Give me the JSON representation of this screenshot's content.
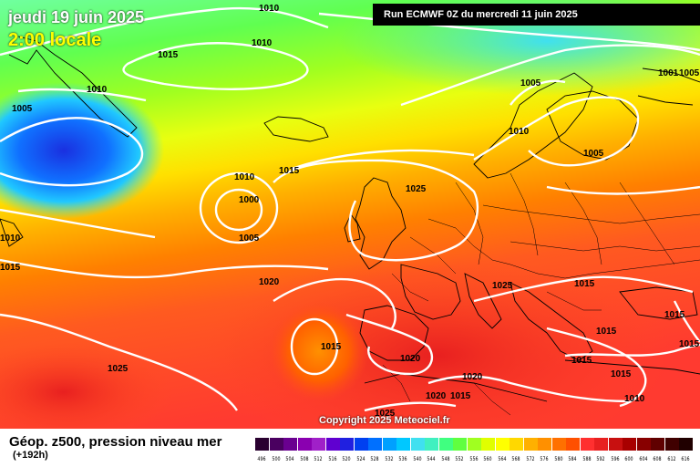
{
  "date": "jeudi 19 juin 2025",
  "local_time": "2:00 locale",
  "run_info": "Run ECMWF 0Z du mercredi 11 juin 2025",
  "copyright": "Copyright 2025 Meteociel.fr",
  "caption": "Géop. z500, pression niveau mer",
  "forecast_hour": "(+192h)",
  "scale_values": [
    "496",
    "500",
    "504",
    "508",
    "512",
    "516",
    "520",
    "524",
    "528",
    "532",
    "536",
    "540",
    "544",
    "548",
    "552",
    "556",
    "560",
    "564",
    "568",
    "572",
    "576",
    "580",
    "584",
    "588",
    "592",
    "596",
    "600",
    "604",
    "608",
    "612",
    "616"
  ],
  "scale_colors": [
    "#2a0030",
    "#4a0060",
    "#6a0090",
    "#8a00b0",
    "#a020c8",
    "#6000d0",
    "#2020e0",
    "#0040f0",
    "#0070ff",
    "#00a0ff",
    "#00c8ff",
    "#40e0f0",
    "#40f0c0",
    "#40ff80",
    "#60ff40",
    "#a0ff20",
    "#e0ff00",
    "#ffff00",
    "#ffd800",
    "#ffb000",
    "#ff9000",
    "#ff7000",
    "#ff5000",
    "#ff3030",
    "#e82020",
    "#c81010",
    "#a80000",
    "#880000",
    "#600000",
    "#400000",
    "#200000"
  ],
  "isobars": [
    {
      "label": "1010",
      "area": "north-atlantic-top"
    },
    {
      "label": "1010",
      "area": "north-atlantic"
    },
    {
      "label": "1015",
      "area": "north-atlantic"
    },
    {
      "label": "1010",
      "area": "greenland"
    },
    {
      "label": "1005",
      "area": "greenland"
    },
    {
      "label": "1010",
      "area": "west-edge"
    },
    {
      "label": "1015",
      "area": "west-edge"
    },
    {
      "label": "1010",
      "area": "low-atlantic"
    },
    {
      "label": "1015",
      "area": "low-atlantic"
    },
    {
      "label": "1000",
      "area": "low-atlantic-center"
    },
    {
      "label": "1005",
      "area": "low-atlantic"
    },
    {
      "label": "1020",
      "area": "mid-atlantic"
    },
    {
      "label": "1025",
      "area": "south-atlantic"
    },
    {
      "label": "1015",
      "area": "iberia-low"
    },
    {
      "label": "1020",
      "area": "iberia"
    },
    {
      "label": "1025",
      "area": "north-sea"
    },
    {
      "label": "1025",
      "area": "central-europe"
    },
    {
      "label": "1005",
      "area": "norway"
    },
    {
      "label": "1010",
      "area": "norway"
    },
    {
      "label": "1005",
      "area": "finland"
    },
    {
      "label": "1005",
      "area": "russia"
    },
    {
      "label": "1001",
      "area": "russia"
    },
    {
      "label": "1015",
      "area": "balkans"
    },
    {
      "label": "1015",
      "area": "black-sea"
    },
    {
      "label": "1015",
      "area": "adriatic"
    },
    {
      "label": "1015",
      "area": "greece"
    },
    {
      "label": "1015",
      "area": "east-edge"
    },
    {
      "label": "1015",
      "area": "turkey"
    },
    {
      "label": "1010",
      "area": "east-med"
    },
    {
      "label": "1020",
      "area": "algeria"
    },
    {
      "label": "1020",
      "area": "morocco"
    },
    {
      "label": "1015",
      "area": "sahara"
    },
    {
      "label": "1025",
      "area": "sahara"
    }
  ]
}
